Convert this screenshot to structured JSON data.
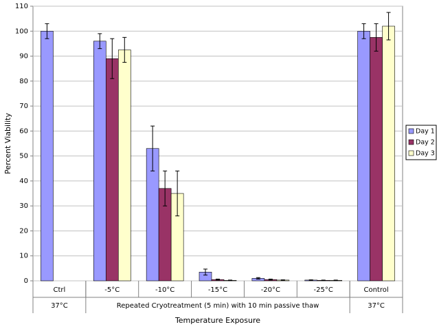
{
  "chart_data": {
    "type": "bar",
    "categories": [
      "Ctrl",
      "-5°C",
      "-10°C",
      "-15°C",
      "-20°C",
      "-25°C",
      "Control"
    ],
    "category_groups": [
      {
        "label": "37°C",
        "count": 1
      },
      {
        "label": "Repeated Cryotreatment (5 min) with 10 min passive thaw",
        "count": 5
      },
      {
        "label": "37°C",
        "count": 1
      }
    ],
    "x_label": "Temperature Exposure",
    "y_label": "Percent Viability",
    "series": [
      {
        "name": "Day 1",
        "color": "#9999ff",
        "values": [
          100,
          96,
          53,
          3.5,
          1,
          0.3,
          100
        ],
        "errors": [
          3,
          3,
          9,
          1.2,
          0.3,
          0.1,
          3
        ]
      },
      {
        "name": "Day 2",
        "color": "#993366",
        "values": [
          null,
          89,
          37,
          0.5,
          0.5,
          0.2,
          97.5
        ],
        "errors": [
          null,
          8,
          7,
          0.2,
          0.2,
          0.1,
          5.5
        ]
      },
      {
        "name": "Day 3",
        "color": "#ffffcc",
        "values": [
          null,
          92.5,
          35,
          0.2,
          0.3,
          0.2,
          102
        ],
        "errors": [
          null,
          5,
          9,
          0.1,
          0.1,
          0.1,
          5.5
        ]
      }
    ],
    "ylim": [
      0,
      110
    ],
    "yticks": [
      0,
      10,
      20,
      30,
      40,
      50,
      60,
      70,
      80,
      90,
      100,
      110
    ],
    "grid": true,
    "legend": "right"
  }
}
